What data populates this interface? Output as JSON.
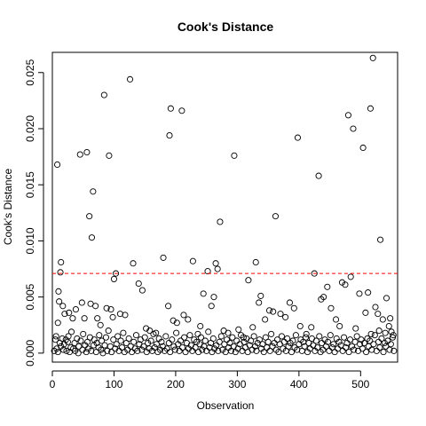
{
  "chart_data": {
    "type": "scatter",
    "title": "Cook's Distance",
    "xlabel": "Observation",
    "ylabel": "Cook's Distance",
    "xlim": [
      0,
      560
    ],
    "ylim": [
      -0.0008,
      0.0268
    ],
    "x_ticks": [
      0,
      100,
      200,
      300,
      400,
      500
    ],
    "y_ticks": [
      0.0,
      0.005,
      0.01,
      0.015,
      0.02,
      0.025
    ],
    "x_tick_labels": [
      "0",
      "100",
      "200",
      "300",
      "400",
      "500"
    ],
    "y_tick_labels": [
      "0.000",
      "0.005",
      "0.010",
      "0.015",
      "0.020",
      "0.025"
    ],
    "grid": false,
    "point_color": "#000000",
    "threshold": {
      "value": 0.0071,
      "color": "#ff0000",
      "style": "dashed"
    },
    "points": [
      [
        8,
        0.0168
      ],
      [
        10,
        0.0055
      ],
      [
        11,
        0.0046
      ],
      [
        13,
        0.0072
      ],
      [
        14,
        0.0081
      ],
      [
        6,
        0.0015
      ],
      [
        9,
        0.0027
      ],
      [
        12,
        0.0009
      ],
      [
        17,
        0.0042
      ],
      [
        20,
        0.0035
      ],
      [
        22,
        0.0012
      ],
      [
        27,
        0.0036
      ],
      [
        33,
        0.0031
      ],
      [
        38,
        0.0039
      ],
      [
        45,
        0.0177
      ],
      [
        48,
        0.0045
      ],
      [
        52,
        0.0031
      ],
      [
        56,
        0.0179
      ],
      [
        60,
        0.0122
      ],
      [
        62,
        0.0044
      ],
      [
        64,
        0.0103
      ],
      [
        66,
        0.0144
      ],
      [
        70,
        0.0042
      ],
      [
        73,
        0.0031
      ],
      [
        78,
        0.0025
      ],
      [
        84,
        0.023
      ],
      [
        88,
        0.004
      ],
      [
        92,
        0.0176
      ],
      [
        95,
        0.0039
      ],
      [
        98,
        0.0032
      ],
      [
        100,
        0.0066
      ],
      [
        103,
        0.0071
      ],
      [
        110,
        0.0035
      ],
      [
        118,
        0.0034
      ],
      [
        126,
        0.0244
      ],
      [
        131,
        0.008
      ],
      [
        140,
        0.0062
      ],
      [
        146,
        0.0056
      ],
      [
        152,
        0.0022
      ],
      [
        158,
        0.002
      ],
      [
        168,
        0.0018
      ],
      [
        180,
        0.0085
      ],
      [
        188,
        0.0042
      ],
      [
        190,
        0.0194
      ],
      [
        192,
        0.0218
      ],
      [
        196,
        0.0029
      ],
      [
        202,
        0.0027
      ],
      [
        210,
        0.0216
      ],
      [
        213,
        0.0034
      ],
      [
        220,
        0.003
      ],
      [
        228,
        0.0082
      ],
      [
        236,
        0.0017
      ],
      [
        240,
        0.0024
      ],
      [
        245,
        0.0053
      ],
      [
        252,
        0.0073
      ],
      [
        258,
        0.0042
      ],
      [
        262,
        0.005
      ],
      [
        265,
        0.008
      ],
      [
        268,
        0.0075
      ],
      [
        272,
        0.0117
      ],
      [
        278,
        0.002
      ],
      [
        285,
        0.0018
      ],
      [
        295,
        0.0176
      ],
      [
        302,
        0.0021
      ],
      [
        310,
        0.0014
      ],
      [
        318,
        0.0065
      ],
      [
        325,
        0.0023
      ],
      [
        330,
        0.0081
      ],
      [
        335,
        0.0045
      ],
      [
        338,
        0.0051
      ],
      [
        345,
        0.003
      ],
      [
        352,
        0.0038
      ],
      [
        358,
        0.0037
      ],
      [
        362,
        0.0122
      ],
      [
        370,
        0.0035
      ],
      [
        378,
        0.0032
      ],
      [
        385,
        0.0045
      ],
      [
        392,
        0.004
      ],
      [
        398,
        0.0192
      ],
      [
        402,
        0.0024
      ],
      [
        412,
        0.0017
      ],
      [
        420,
        0.0023
      ],
      [
        425,
        0.0071
      ],
      [
        432,
        0.0158
      ],
      [
        436,
        0.0048
      ],
      [
        440,
        0.005
      ],
      [
        446,
        0.0059
      ],
      [
        452,
        0.004
      ],
      [
        460,
        0.003
      ],
      [
        466,
        0.0024
      ],
      [
        470,
        0.0063
      ],
      [
        475,
        0.0061
      ],
      [
        480,
        0.0212
      ],
      [
        484,
        0.0068
      ],
      [
        488,
        0.02
      ],
      [
        492,
        0.0022
      ],
      [
        498,
        0.0053
      ],
      [
        504,
        0.0183
      ],
      [
        508,
        0.0036
      ],
      [
        512,
        0.0054
      ],
      [
        516,
        0.0218
      ],
      [
        520,
        0.0263
      ],
      [
        524,
        0.0041
      ],
      [
        528,
        0.0035
      ],
      [
        532,
        0.0101
      ],
      [
        536,
        0.003
      ],
      [
        542,
        0.0049
      ],
      [
        546,
        0.0024
      ],
      [
        550,
        0.0019
      ],
      [
        548,
        0.0031
      ],
      [
        553,
        0.0016
      ],
      [
        3,
        0.0002
      ],
      [
        5,
        0.0012
      ],
      [
        7,
        0.0004
      ],
      [
        9,
        0.0001
      ],
      [
        14,
        0.0006
      ],
      [
        16,
        0.0013
      ],
      [
        18,
        0.0003
      ],
      [
        19,
        0.0008
      ],
      [
        23,
        0.0002
      ],
      [
        25,
        0.001
      ],
      [
        26,
        0.0015
      ],
      [
        28,
        0.0001
      ],
      [
        30,
        0.0005
      ],
      [
        31,
        0.0019
      ],
      [
        34,
        0.0004
      ],
      [
        36,
        0.0009
      ],
      [
        37,
        0.0002
      ],
      [
        40,
        0.0013
      ],
      [
        42,
        0.0
      ],
      [
        43,
        0.0006
      ],
      [
        46,
        0.0011
      ],
      [
        49,
        0.0003
      ],
      [
        50,
        0.0017
      ],
      [
        53,
        0.0007
      ],
      [
        55,
        0.0001
      ],
      [
        57,
        0.001
      ],
      [
        58,
        0.0004
      ],
      [
        61,
        0.0014
      ],
      [
        63,
        0.0002
      ],
      [
        67,
        0.0007
      ],
      [
        68,
        0.0012
      ],
      [
        71,
        0.0001
      ],
      [
        72,
        0.0009
      ],
      [
        75,
        0.0005
      ],
      [
        76,
        0.0016
      ],
      [
        79,
        0.0003
      ],
      [
        80,
        0.0011
      ],
      [
        82,
        0.0
      ],
      [
        85,
        0.0007
      ],
      [
        87,
        0.0014
      ],
      [
        89,
        0.0002
      ],
      [
        91,
        0.002
      ],
      [
        94,
        0.0006
      ],
      [
        96,
        0.0001
      ],
      [
        99,
        0.0012
      ],
      [
        102,
        0.0004
      ],
      [
        104,
        0.0008
      ],
      [
        106,
        0.0015
      ],
      [
        108,
        0.0002
      ],
      [
        111,
        0.0011
      ],
      [
        113,
        0.0005
      ],
      [
        115,
        0.0018
      ],
      [
        117,
        0.0001
      ],
      [
        120,
        0.0009
      ],
      [
        122,
        0.0003
      ],
      [
        124,
        0.0013
      ],
      [
        127,
        0.0006
      ],
      [
        129,
        0.0001
      ],
      [
        132,
        0.001
      ],
      [
        134,
        0.0004
      ],
      [
        136,
        0.0016
      ],
      [
        138,
        0.0002
      ],
      [
        141,
        0.0008
      ],
      [
        143,
        0.0012
      ],
      [
        145,
        0.0003
      ],
      [
        148,
        0.0006
      ],
      [
        150,
        0.0014
      ],
      [
        153,
        0.0001
      ],
      [
        155,
        0.0009
      ],
      [
        157,
        0.0004
      ],
      [
        160,
        0.0011
      ],
      [
        162,
        0.0002
      ],
      [
        164,
        0.0017
      ],
      [
        166,
        0.0005
      ],
      [
        169,
        0.0008
      ],
      [
        171,
        0.0001
      ],
      [
        173,
        0.0013
      ],
      [
        175,
        0.0003
      ],
      [
        177,
        0.001
      ],
      [
        179,
        0.0006
      ],
      [
        182,
        0.0002
      ],
      [
        184,
        0.0015
      ],
      [
        186,
        0.0004
      ],
      [
        189,
        0.0009
      ],
      [
        191,
        0.0001
      ],
      [
        194,
        0.0012
      ],
      [
        197,
        0.0006
      ],
      [
        199,
        0.0003
      ],
      [
        201,
        0.0018
      ],
      [
        204,
        0.0008
      ],
      [
        206,
        0.0002
      ],
      [
        208,
        0.0011
      ],
      [
        211,
        0.0005
      ],
      [
        214,
        0.0014
      ],
      [
        216,
        0.0001
      ],
      [
        218,
        0.0009
      ],
      [
        221,
        0.0004
      ],
      [
        223,
        0.0016
      ],
      [
        225,
        0.0007
      ],
      [
        227,
        0.0002
      ],
      [
        230,
        0.0012
      ],
      [
        232,
        0.0005
      ],
      [
        234,
        0.001
      ],
      [
        237,
        0.0001
      ],
      [
        239,
        0.0008
      ],
      [
        241,
        0.0014
      ],
      [
        243,
        0.0003
      ],
      [
        246,
        0.0006
      ],
      [
        248,
        0.0011
      ],
      [
        250,
        0.0002
      ],
      [
        253,
        0.0019
      ],
      [
        255,
        0.0005
      ],
      [
        257,
        0.0009
      ],
      [
        259,
        0.0001
      ],
      [
        261,
        0.0013
      ],
      [
        263,
        0.0004
      ],
      [
        266,
        0.0007
      ],
      [
        269,
        0.0002
      ],
      [
        271,
        0.001
      ],
      [
        274,
        0.0015
      ],
      [
        276,
        0.0003
      ],
      [
        279,
        0.0008
      ],
      [
        281,
        0.0001
      ],
      [
        283,
        0.0012
      ],
      [
        286,
        0.0005
      ],
      [
        288,
        0.0009
      ],
      [
        290,
        0.0002
      ],
      [
        292,
        0.0014
      ],
      [
        294,
        0.0006
      ],
      [
        297,
        0.0001
      ],
      [
        299,
        0.0011
      ],
      [
        301,
        0.0004
      ],
      [
        304,
        0.0008
      ],
      [
        306,
        0.0016
      ],
      [
        308,
        0.0002
      ],
      [
        311,
        0.001
      ],
      [
        313,
        0.0005
      ],
      [
        315,
        0.0013
      ],
      [
        317,
        0.0001
      ],
      [
        320,
        0.0007
      ],
      [
        322,
        0.0011
      ],
      [
        324,
        0.0003
      ],
      [
        327,
        0.0015
      ],
      [
        329,
        0.0006
      ],
      [
        331,
        0.0002
      ],
      [
        333,
        0.0009
      ],
      [
        336,
        0.0012
      ],
      [
        339,
        0.0004
      ],
      [
        341,
        0.0008
      ],
      [
        343,
        0.0001
      ],
      [
        346,
        0.0014
      ],
      [
        348,
        0.0005
      ],
      [
        350,
        0.001
      ],
      [
        353,
        0.0002
      ],
      [
        355,
        0.0017
      ],
      [
        357,
        0.0006
      ],
      [
        360,
        0.0009
      ],
      [
        363,
        0.0003
      ],
      [
        365,
        0.0012
      ],
      [
        367,
        0.0001
      ],
      [
        369,
        0.0008
      ],
      [
        372,
        0.0015
      ],
      [
        374,
        0.0004
      ],
      [
        376,
        0.001
      ],
      [
        379,
        0.0002
      ],
      [
        381,
        0.0013
      ],
      [
        383,
        0.0006
      ],
      [
        386,
        0.0009
      ],
      [
        388,
        0.0001
      ],
      [
        390,
        0.0011
      ],
      [
        393,
        0.0005
      ],
      [
        395,
        0.0016
      ],
      [
        397,
        0.0003
      ],
      [
        400,
        0.0008
      ],
      [
        403,
        0.0012
      ],
      [
        405,
        0.0002
      ],
      [
        407,
        0.001
      ],
      [
        409,
        0.0006
      ],
      [
        411,
        0.0014
      ],
      [
        414,
        0.0001
      ],
      [
        416,
        0.0009
      ],
      [
        418,
        0.0004
      ],
      [
        421,
        0.0013
      ],
      [
        423,
        0.0007
      ],
      [
        426,
        0.0002
      ],
      [
        428,
        0.0011
      ],
      [
        430,
        0.0005
      ],
      [
        433,
        0.0015
      ],
      [
        435,
        0.0001
      ],
      [
        437,
        0.0009
      ],
      [
        439,
        0.0003
      ],
      [
        442,
        0.0012
      ],
      [
        444,
        0.0006
      ],
      [
        447,
        0.001
      ],
      [
        449,
        0.0002
      ],
      [
        451,
        0.0016
      ],
      [
        454,
        0.0005
      ],
      [
        456,
        0.0008
      ],
      [
        458,
        0.0001
      ],
      [
        461,
        0.0013
      ],
      [
        463,
        0.0004
      ],
      [
        465,
        0.001
      ],
      [
        468,
        0.0007
      ],
      [
        471,
        0.0002
      ],
      [
        473,
        0.0014
      ],
      [
        476,
        0.0005
      ],
      [
        478,
        0.0009
      ],
      [
        481,
        0.0001
      ],
      [
        483,
        0.0012
      ],
      [
        486,
        0.0006
      ],
      [
        489,
        0.0003
      ],
      [
        491,
        0.001
      ],
      [
        494,
        0.0015
      ],
      [
        496,
        0.0002
      ],
      [
        499,
        0.0008
      ],
      [
        501,
        0.0012
      ],
      [
        503,
        0.0004
      ],
      [
        506,
        0.0009
      ],
      [
        509,
        0.0001
      ],
      [
        511,
        0.0013
      ],
      [
        513,
        0.0006
      ],
      [
        515,
        0.0011
      ],
      [
        518,
        0.0003
      ],
      [
        521,
        0.0008
      ],
      [
        523,
        0.0016
      ],
      [
        526,
        0.0002
      ],
      [
        529,
        0.001
      ],
      [
        531,
        0.0005
      ],
      [
        534,
        0.0013
      ],
      [
        537,
        0.0001
      ],
      [
        539,
        0.0009
      ],
      [
        541,
        0.0006
      ],
      [
        544,
        0.0011
      ],
      [
        547,
        0.0003
      ],
      [
        549,
        0.0008
      ],
      [
        552,
        0.0014
      ],
      [
        554,
        0.0002
      ],
      [
        540,
        0.0018
      ],
      [
        530,
        0.002
      ],
      [
        517,
        0.0017
      ]
    ]
  }
}
